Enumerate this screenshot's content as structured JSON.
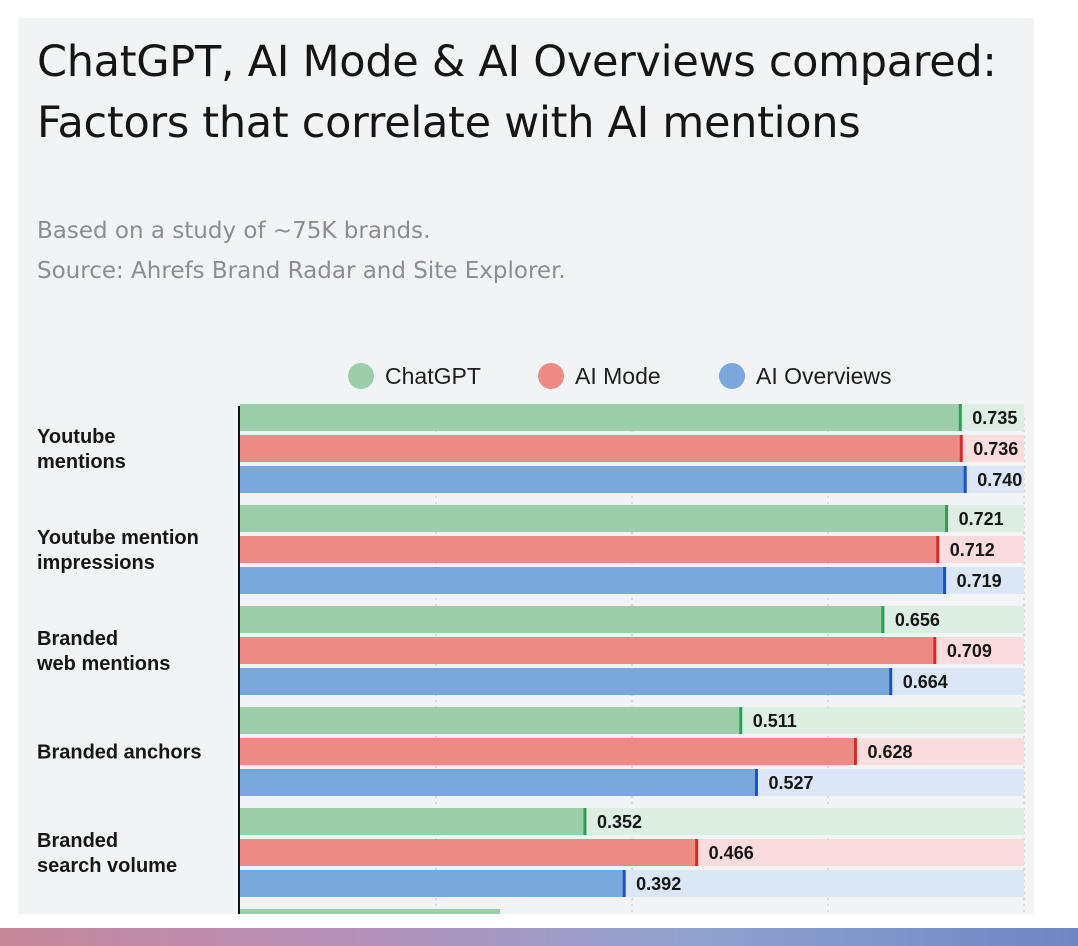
{
  "header": {
    "title": "ChatGPT, AI Mode & AI Overviews compared: Factors that correlate with AI mentions",
    "subtitle_line1": "Based on a study of ~75K brands.",
    "subtitle_line2": "Source: Ahrefs Brand Radar and Site Explorer."
  },
  "colors": {
    "chatgpt_bar": "#9bcea9",
    "chatgpt_track": "#dcefe2",
    "chatgpt_marker": "#2f9d55",
    "ai_mode_bar": "#ec8a84",
    "ai_mode_track": "#f9dcdb",
    "ai_mode_marker": "#d62a2a",
    "ai_overviews_bar": "#7aa8dc",
    "ai_overviews_track": "#dbe7f6",
    "ai_overviews_marker": "#1f4fc8"
  },
  "chart_data": {
    "type": "bar",
    "orientation": "horizontal",
    "title": "ChatGPT, AI Mode & AI Overviews compared: Factors that correlate with AI mentions",
    "xlim": [
      0,
      0.8
    ],
    "grid": true,
    "legend_position": "top-center",
    "categories": [
      "Youtube mentions",
      "Youtube mention impressions",
      "Branded web mentions",
      "Branded anchors",
      "Branded search volume"
    ],
    "category_label_lines": [
      [
        "Youtube",
        "mentions"
      ],
      [
        "Youtube mention",
        "impressions"
      ],
      [
        "Branded",
        "web mentions"
      ],
      [
        "Branded anchors"
      ],
      [
        "Branded",
        "search volume"
      ]
    ],
    "series": [
      {
        "name": "ChatGPT",
        "values": [
          0.735,
          0.721,
          0.656,
          0.511,
          0.352
        ],
        "labels": [
          "0.735",
          "0.721",
          "0.656",
          "0.511",
          "0.352"
        ]
      },
      {
        "name": "AI Mode",
        "values": [
          0.736,
          0.712,
          0.709,
          0.628,
          0.466
        ],
        "labels": [
          "0.736",
          "0.712",
          "0.709",
          "0.628",
          "0.466"
        ]
      },
      {
        "name": "AI Overviews",
        "values": [
          0.74,
          0.719,
          0.664,
          0.527,
          0.392
        ],
        "labels": [
          "0.740",
          "0.719",
          "0.664",
          "0.527",
          "0.392"
        ]
      }
    ]
  }
}
